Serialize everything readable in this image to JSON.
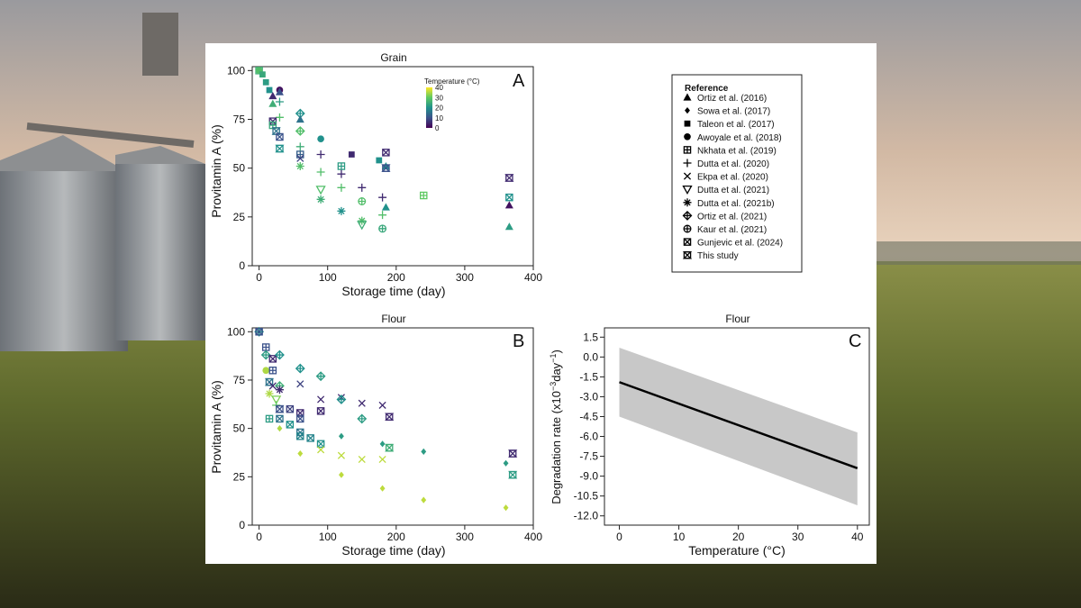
{
  "chart_data": [
    {
      "id": "A",
      "type": "scatter",
      "title": "Grain",
      "panel_letter": "A",
      "xlabel": "Storage time (day)",
      "ylabel": "Provitamin A (%)",
      "xlim": [
        -10,
        400
      ],
      "ylim": [
        0,
        102
      ],
      "xticks": [
        "0",
        "100",
        "200",
        "300",
        "400"
      ],
      "yticks": [
        "0",
        "25",
        "50",
        "75",
        "100"
      ],
      "colorbar": {
        "title": "Temperature (°C)",
        "ticks": [
          "40",
          "30",
          "20",
          "10",
          "0"
        ],
        "range": [
          0,
          40
        ]
      },
      "points": [
        {
          "x": 0,
          "y": 100,
          "ref": "Nkhata et al. (2019)",
          "temp": 25
        },
        {
          "x": 0,
          "y": 100,
          "ref": "Awoyale et al. (2018)",
          "temp": 28
        },
        {
          "x": 5,
          "y": 98,
          "ref": "Taleon et al. (2017)",
          "temp": 24
        },
        {
          "x": 10,
          "y": 94,
          "ref": "Taleon et al. (2017)",
          "temp": 22
        },
        {
          "x": 15,
          "y": 90,
          "ref": "Taleon et al. (2017)",
          "temp": 20
        },
        {
          "x": 20,
          "y": 87,
          "ref": "Ortiz et al. (2016)",
          "temp": 5
        },
        {
          "x": 20,
          "y": 83,
          "ref": "Ortiz et al. (2016)",
          "temp": 25
        },
        {
          "x": 30,
          "y": 90,
          "ref": "Awoyale et al. (2018)",
          "temp": 2
        },
        {
          "x": 30,
          "y": 89,
          "ref": "Ortiz et al. (2016)",
          "temp": 10
        },
        {
          "x": 30,
          "y": 84,
          "ref": "Dutta et al. (2020)",
          "temp": 22
        },
        {
          "x": 30,
          "y": 76,
          "ref": "Dutta et al. (2020)",
          "temp": 28
        },
        {
          "x": 20,
          "y": 74,
          "ref": "Gunjevic et al. (2024)",
          "temp": 5
        },
        {
          "x": 20,
          "y": 72,
          "ref": "Nkhata et al. (2019)",
          "temp": 24
        },
        {
          "x": 25,
          "y": 69,
          "ref": "This study",
          "temp": 15
        },
        {
          "x": 30,
          "y": 66,
          "ref": "Gunjevic et al. (2024)",
          "temp": 10
        },
        {
          "x": 30,
          "y": 60,
          "ref": "This study",
          "temp": 20
        },
        {
          "x": 60,
          "y": 78,
          "ref": "Ortiz et al. (2021)",
          "temp": 20
        },
        {
          "x": 60,
          "y": 75,
          "ref": "Ortiz et al. (2016)",
          "temp": 15
        },
        {
          "x": 60,
          "y": 69,
          "ref": "Ortiz et al. (2021)",
          "temp": 28
        },
        {
          "x": 60,
          "y": 61,
          "ref": "Dutta et al. (2020)",
          "temp": 25
        },
        {
          "x": 60,
          "y": 57,
          "ref": "Nkhata et al. (2019)",
          "temp": 12
        },
        {
          "x": 60,
          "y": 55,
          "ref": "Ekpa et al. (2020)",
          "temp": 8
        },
        {
          "x": 60,
          "y": 51,
          "ref": "Dutta et al. (2021b)",
          "temp": 28
        },
        {
          "x": 90,
          "y": 65,
          "ref": "Awoyale et al. (2018)",
          "temp": 20
        },
        {
          "x": 90,
          "y": 57,
          "ref": "Dutta et al. (2020)",
          "temp": 5
        },
        {
          "x": 90,
          "y": 48,
          "ref": "Dutta et al. (2020)",
          "temp": 28
        },
        {
          "x": 90,
          "y": 39,
          "ref": "Dutta et al. (2021)",
          "temp": 28
        },
        {
          "x": 90,
          "y": 34,
          "ref": "Dutta et al. (2021b)",
          "temp": 25
        },
        {
          "x": 120,
          "y": 51,
          "ref": "Nkhata et al. (2019)",
          "temp": 22
        },
        {
          "x": 120,
          "y": 47,
          "ref": "Dutta et al. (2020)",
          "temp": 5
        },
        {
          "x": 120,
          "y": 40,
          "ref": "Dutta et al. (2020)",
          "temp": 28
        },
        {
          "x": 120,
          "y": 28,
          "ref": "Dutta et al. (2021b)",
          "temp": 20
        },
        {
          "x": 135,
          "y": 57,
          "ref": "Taleon et al. (2017)",
          "temp": 5
        },
        {
          "x": 150,
          "y": 40,
          "ref": "Dutta et al. (2020)",
          "temp": 5
        },
        {
          "x": 150,
          "y": 33,
          "ref": "Kaur et al. (2021)",
          "temp": 28
        },
        {
          "x": 150,
          "y": 23,
          "ref": "Dutta et al. (2021b)",
          "temp": 28
        },
        {
          "x": 150,
          "y": 21,
          "ref": "Dutta et al. (2021)",
          "temp": 25
        },
        {
          "x": 175,
          "y": 54,
          "ref": "Taleon et al. (2017)",
          "temp": 20
        },
        {
          "x": 180,
          "y": 35,
          "ref": "Dutta et al. (2020)",
          "temp": 5
        },
        {
          "x": 180,
          "y": 26,
          "ref": "Dutta et al. (2020)",
          "temp": 28
        },
        {
          "x": 180,
          "y": 19,
          "ref": "Kaur et al. (2021)",
          "temp": 24
        },
        {
          "x": 185,
          "y": 58,
          "ref": "Gunjevic et al. (2024)",
          "temp": 5
        },
        {
          "x": 185,
          "y": 51,
          "ref": "Ortiz et al. (2016)",
          "temp": 20
        },
        {
          "x": 185,
          "y": 50,
          "ref": "This study",
          "temp": 10
        },
        {
          "x": 185,
          "y": 30,
          "ref": "Ortiz et al. (2016)",
          "temp": 20
        },
        {
          "x": 240,
          "y": 36,
          "ref": "Nkhata et al. (2019)",
          "temp": 30
        },
        {
          "x": 365,
          "y": 45,
          "ref": "This study",
          "temp": 5
        },
        {
          "x": 365,
          "y": 35,
          "ref": "Gunjevic et al. (2024)",
          "temp": 20
        },
        {
          "x": 365,
          "y": 31,
          "ref": "Ortiz et al. (2016)",
          "temp": 2
        },
        {
          "x": 365,
          "y": 20,
          "ref": "Ortiz et al. (2016)",
          "temp": 22
        }
      ]
    },
    {
      "id": "B",
      "type": "scatter",
      "title": "Flour",
      "panel_letter": "B",
      "xlabel": "Storage time (day)",
      "ylabel": "Provitamin A (%)",
      "xlim": [
        -10,
        400
      ],
      "ylim": [
        0,
        102
      ],
      "xticks": [
        "0",
        "100",
        "200",
        "300",
        "400"
      ],
      "yticks": [
        "0",
        "25",
        "50",
        "75",
        "100"
      ],
      "points": [
        {
          "x": 0,
          "y": 100,
          "ref": "Ortiz et al. (2021)",
          "temp": 20
        },
        {
          "x": 0,
          "y": 100,
          "ref": "Gunjevic et al. (2024)",
          "temp": 10
        },
        {
          "x": 10,
          "y": 92,
          "ref": "Nkhata et al. (2019)",
          "temp": 10
        },
        {
          "x": 10,
          "y": 88,
          "ref": "Ortiz et al. (2021)",
          "temp": 22
        },
        {
          "x": 10,
          "y": 80,
          "ref": "Awoyale et al. (2018)",
          "temp": 35
        },
        {
          "x": 15,
          "y": 74,
          "ref": "This study",
          "temp": 15
        },
        {
          "x": 15,
          "y": 68,
          "ref": "Dutta et al. (2021b)",
          "temp": 35
        },
        {
          "x": 15,
          "y": 55,
          "ref": "Nkhata et al. (2019)",
          "temp": 22
        },
        {
          "x": 20,
          "y": 86,
          "ref": "Gunjevic et al. (2024)",
          "temp": 5
        },
        {
          "x": 20,
          "y": 80,
          "ref": "Nkhata et al. (2019)",
          "temp": 10
        },
        {
          "x": 20,
          "y": 72,
          "ref": "Ekpa et al. (2020)",
          "temp": 5
        },
        {
          "x": 25,
          "y": 65,
          "ref": "Dutta et al. (2021)",
          "temp": 32
        },
        {
          "x": 25,
          "y": 62,
          "ref": "Dutta et al. (2020)",
          "temp": 30
        },
        {
          "x": 30,
          "y": 88,
          "ref": "Ortiz et al. (2021)",
          "temp": 20
        },
        {
          "x": 30,
          "y": 72,
          "ref": "Ortiz et al. (2021)",
          "temp": 25
        },
        {
          "x": 30,
          "y": 70,
          "ref": "Dutta et al. (2021b)",
          "temp": 5
        },
        {
          "x": 30,
          "y": 60,
          "ref": "This study",
          "temp": 10
        },
        {
          "x": 30,
          "y": 55,
          "ref": "Gunjevic et al. (2024)",
          "temp": 15
        },
        {
          "x": 30,
          "y": 50,
          "ref": "Sowa et al. (2017)",
          "temp": 35
        },
        {
          "x": 45,
          "y": 60,
          "ref": "Gunjevic et al. (2024)",
          "temp": 8
        },
        {
          "x": 45,
          "y": 52,
          "ref": "Gunjevic et al. (2024)",
          "temp": 20
        },
        {
          "x": 60,
          "y": 81,
          "ref": "Ortiz et al. (2021)",
          "temp": 20
        },
        {
          "x": 60,
          "y": 73,
          "ref": "Ekpa et al. (2020)",
          "temp": 8
        },
        {
          "x": 60,
          "y": 58,
          "ref": "Gunjevic et al. (2024)",
          "temp": 5
        },
        {
          "x": 60,
          "y": 55,
          "ref": "Gunjevic et al. (2024)",
          "temp": 10
        },
        {
          "x": 60,
          "y": 48,
          "ref": "Gunjevic et al. (2024)",
          "temp": 15
        },
        {
          "x": 60,
          "y": 46,
          "ref": "Gunjevic et al. (2024)",
          "temp": 18
        },
        {
          "x": 60,
          "y": 37,
          "ref": "Sowa et al. (2017)",
          "temp": 36
        },
        {
          "x": 75,
          "y": 45,
          "ref": "Gunjevic et al. (2024)",
          "temp": 18
        },
        {
          "x": 90,
          "y": 77,
          "ref": "Ortiz et al. (2021)",
          "temp": 22
        },
        {
          "x": 90,
          "y": 65,
          "ref": "Ekpa et al. (2020)",
          "temp": 5
        },
        {
          "x": 90,
          "y": 59,
          "ref": "Gunjevic et al. (2024)",
          "temp": 5
        },
        {
          "x": 90,
          "y": 42,
          "ref": "Gunjevic et al. (2024)",
          "temp": 20
        },
        {
          "x": 90,
          "y": 39,
          "ref": "Ekpa et al. (2020)",
          "temp": 36
        },
        {
          "x": 120,
          "y": 66,
          "ref": "Ekpa et al. (2020)",
          "temp": 5
        },
        {
          "x": 120,
          "y": 65,
          "ref": "Ortiz et al. (2021)",
          "temp": 20
        },
        {
          "x": 120,
          "y": 46,
          "ref": "Sowa et al. (2017)",
          "temp": 22
        },
        {
          "x": 120,
          "y": 36,
          "ref": "Ekpa et al. (2020)",
          "temp": 36
        },
        {
          "x": 120,
          "y": 26,
          "ref": "Sowa et al. (2017)",
          "temp": 36
        },
        {
          "x": 150,
          "y": 63,
          "ref": "Ekpa et al. (2020)",
          "temp": 5
        },
        {
          "x": 150,
          "y": 55,
          "ref": "Ortiz et al. (2021)",
          "temp": 22
        },
        {
          "x": 150,
          "y": 34,
          "ref": "Ekpa et al. (2020)",
          "temp": 36
        },
        {
          "x": 180,
          "y": 62,
          "ref": "Ekpa et al. (2020)",
          "temp": 5
        },
        {
          "x": 180,
          "y": 42,
          "ref": "Sowa et al. (2017)",
          "temp": 22
        },
        {
          "x": 180,
          "y": 34,
          "ref": "Ekpa et al. (2020)",
          "temp": 36
        },
        {
          "x": 180,
          "y": 19,
          "ref": "Sowa et al. (2017)",
          "temp": 36
        },
        {
          "x": 190,
          "y": 56,
          "ref": "This study",
          "temp": 5
        },
        {
          "x": 190,
          "y": 40,
          "ref": "This study",
          "temp": 25
        },
        {
          "x": 240,
          "y": 38,
          "ref": "Sowa et al. (2017)",
          "temp": 22
        },
        {
          "x": 240,
          "y": 13,
          "ref": "Sowa et al. (2017)",
          "temp": 36
        },
        {
          "x": 360,
          "y": 32,
          "ref": "Sowa et al. (2017)",
          "temp": 22
        },
        {
          "x": 360,
          "y": 9,
          "ref": "Sowa et al. (2017)",
          "temp": 36
        },
        {
          "x": 370,
          "y": 37,
          "ref": "This study",
          "temp": 5
        },
        {
          "x": 370,
          "y": 26,
          "ref": "This study",
          "temp": 22
        }
      ]
    },
    {
      "id": "C",
      "type": "line",
      "title": "Flour",
      "panel_letter": "C",
      "xlabel": "Temperature (°C)",
      "ylabel_main": "Degradation rate (x10",
      "ylabel_sup1": "−3",
      "ylabel_mid": "day",
      "ylabel_sup2": "−1",
      "ylabel_end": ")",
      "xlim": [
        -2.5,
        42
      ],
      "ylim": [
        -12.7,
        2.2
      ],
      "xticks": [
        "0",
        "10",
        "20",
        "30",
        "40"
      ],
      "yticks": [
        "1.5",
        "0.0",
        "-1.5",
        "-3.0",
        "-4.5",
        "-6.0",
        "-7.5",
        "-9.0",
        "-10.5",
        "-12.0"
      ],
      "line": {
        "x": [
          0,
          40
        ],
        "y": [
          -1.9,
          -8.4
        ]
      },
      "band": {
        "x": [
          0,
          40
        ],
        "lower": [
          -4.5,
          -11.2
        ],
        "upper": [
          0.7,
          -5.7
        ]
      },
      "band_color": "#c8c8c8",
      "line_color": "#000000"
    }
  ],
  "legend": {
    "title": "Reference",
    "items": [
      {
        "label": "Ortiz et al. (2016)",
        "marker": "triangle"
      },
      {
        "label": "Sowa et al. (2017)",
        "marker": "diamond"
      },
      {
        "label": "Taleon et al. (2017)",
        "marker": "square"
      },
      {
        "label": "Awoyale et al. (2018)",
        "marker": "circle"
      },
      {
        "label": "Nkhata et al. (2019)",
        "marker": "boxplus"
      },
      {
        "label": "Dutta et al. (2020)",
        "marker": "plus"
      },
      {
        "label": "Ekpa et al. (2020)",
        "marker": "cross"
      },
      {
        "label": "Dutta et al. (2021)",
        "marker": "triangle-down"
      },
      {
        "label": "Dutta et al. (2021b)",
        "marker": "asterisk"
      },
      {
        "label": "Ortiz et al. (2021)",
        "marker": "diamondplus"
      },
      {
        "label": "Kaur et al. (2021)",
        "marker": "circleplus"
      },
      {
        "label": "Gunjevic et al. (2024)",
        "marker": "boxcross"
      },
      {
        "label": "This study",
        "marker": "hourglass"
      }
    ]
  },
  "viridis": [
    "#440154",
    "#3b528b",
    "#21918c",
    "#5ec962",
    "#fde725"
  ]
}
